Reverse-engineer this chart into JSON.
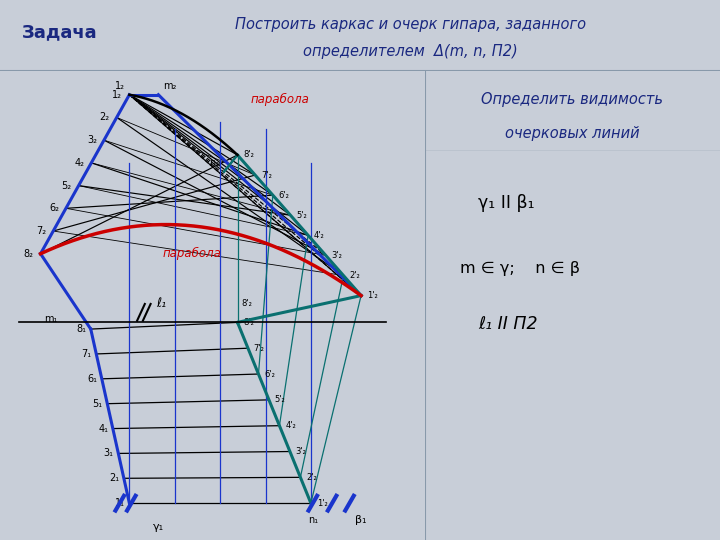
{
  "bg_main": "#c8ced8",
  "bg_header": "#d0dce8",
  "bg_right_top": "#d0dce8",
  "bg_right_bot": "#c8ced8",
  "header_border_color": "#8899aa",
  "text_dark_blue": "#1a2880",
  "blue": "#1a35cc",
  "teal": "#0a7070",
  "red": "#cc0000",
  "black": "#000000",
  "title_line1": "Построить каркас и очерк гипара, заданного",
  "title_line2": "определителем  Δ(m, n, Π2)",
  "zadacha": "Задача",
  "subtitle_line1": "Определить видимость",
  "subtitle_line2": "очерковых линий",
  "note1": "γ₁ II β₁",
  "note2": "m ∈ γ;    n ∈ β",
  "note3": "ℓ₁ II Π2"
}
